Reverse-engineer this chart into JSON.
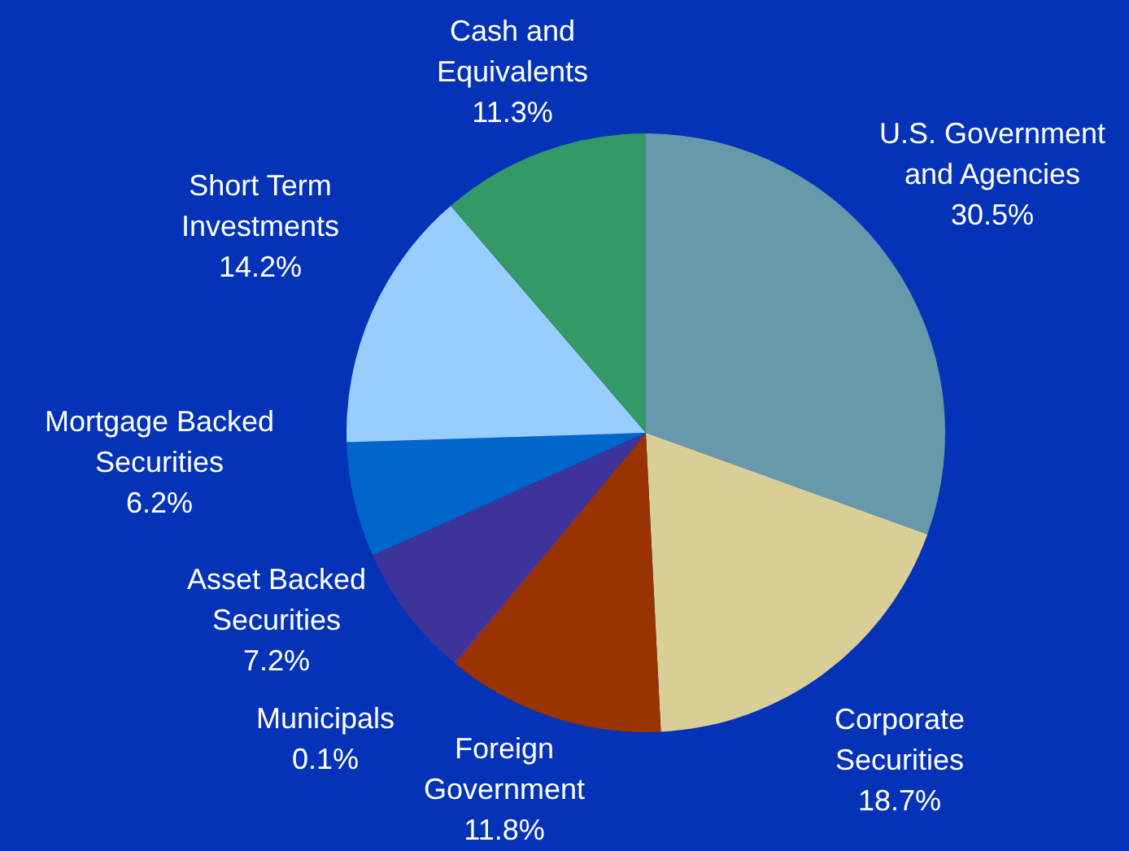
{
  "chart_data": {
    "type": "pie",
    "categories": [
      "U.S. Government and Agencies",
      "Corporate Securities",
      "Foreign Government",
      "Municipals",
      "Asset Backed Securities",
      "Mortgage Backed Securities",
      "Short Term Investments",
      "Cash and Equivalents"
    ],
    "values": [
      30.5,
      18.7,
      11.8,
      0.1,
      7.2,
      6.2,
      14.2,
      11.3
    ],
    "value_labels": [
      "30.5%",
      "18.7%",
      "11.8%",
      "0.1%",
      "7.2%",
      "6.2%",
      "14.2%",
      "11.3%"
    ],
    "colors": [
      "#6699aa",
      "#d9cf96",
      "#993300",
      "#663399",
      "#3d3399",
      "#0066cc",
      "#99ccff",
      "#339966"
    ]
  }
}
